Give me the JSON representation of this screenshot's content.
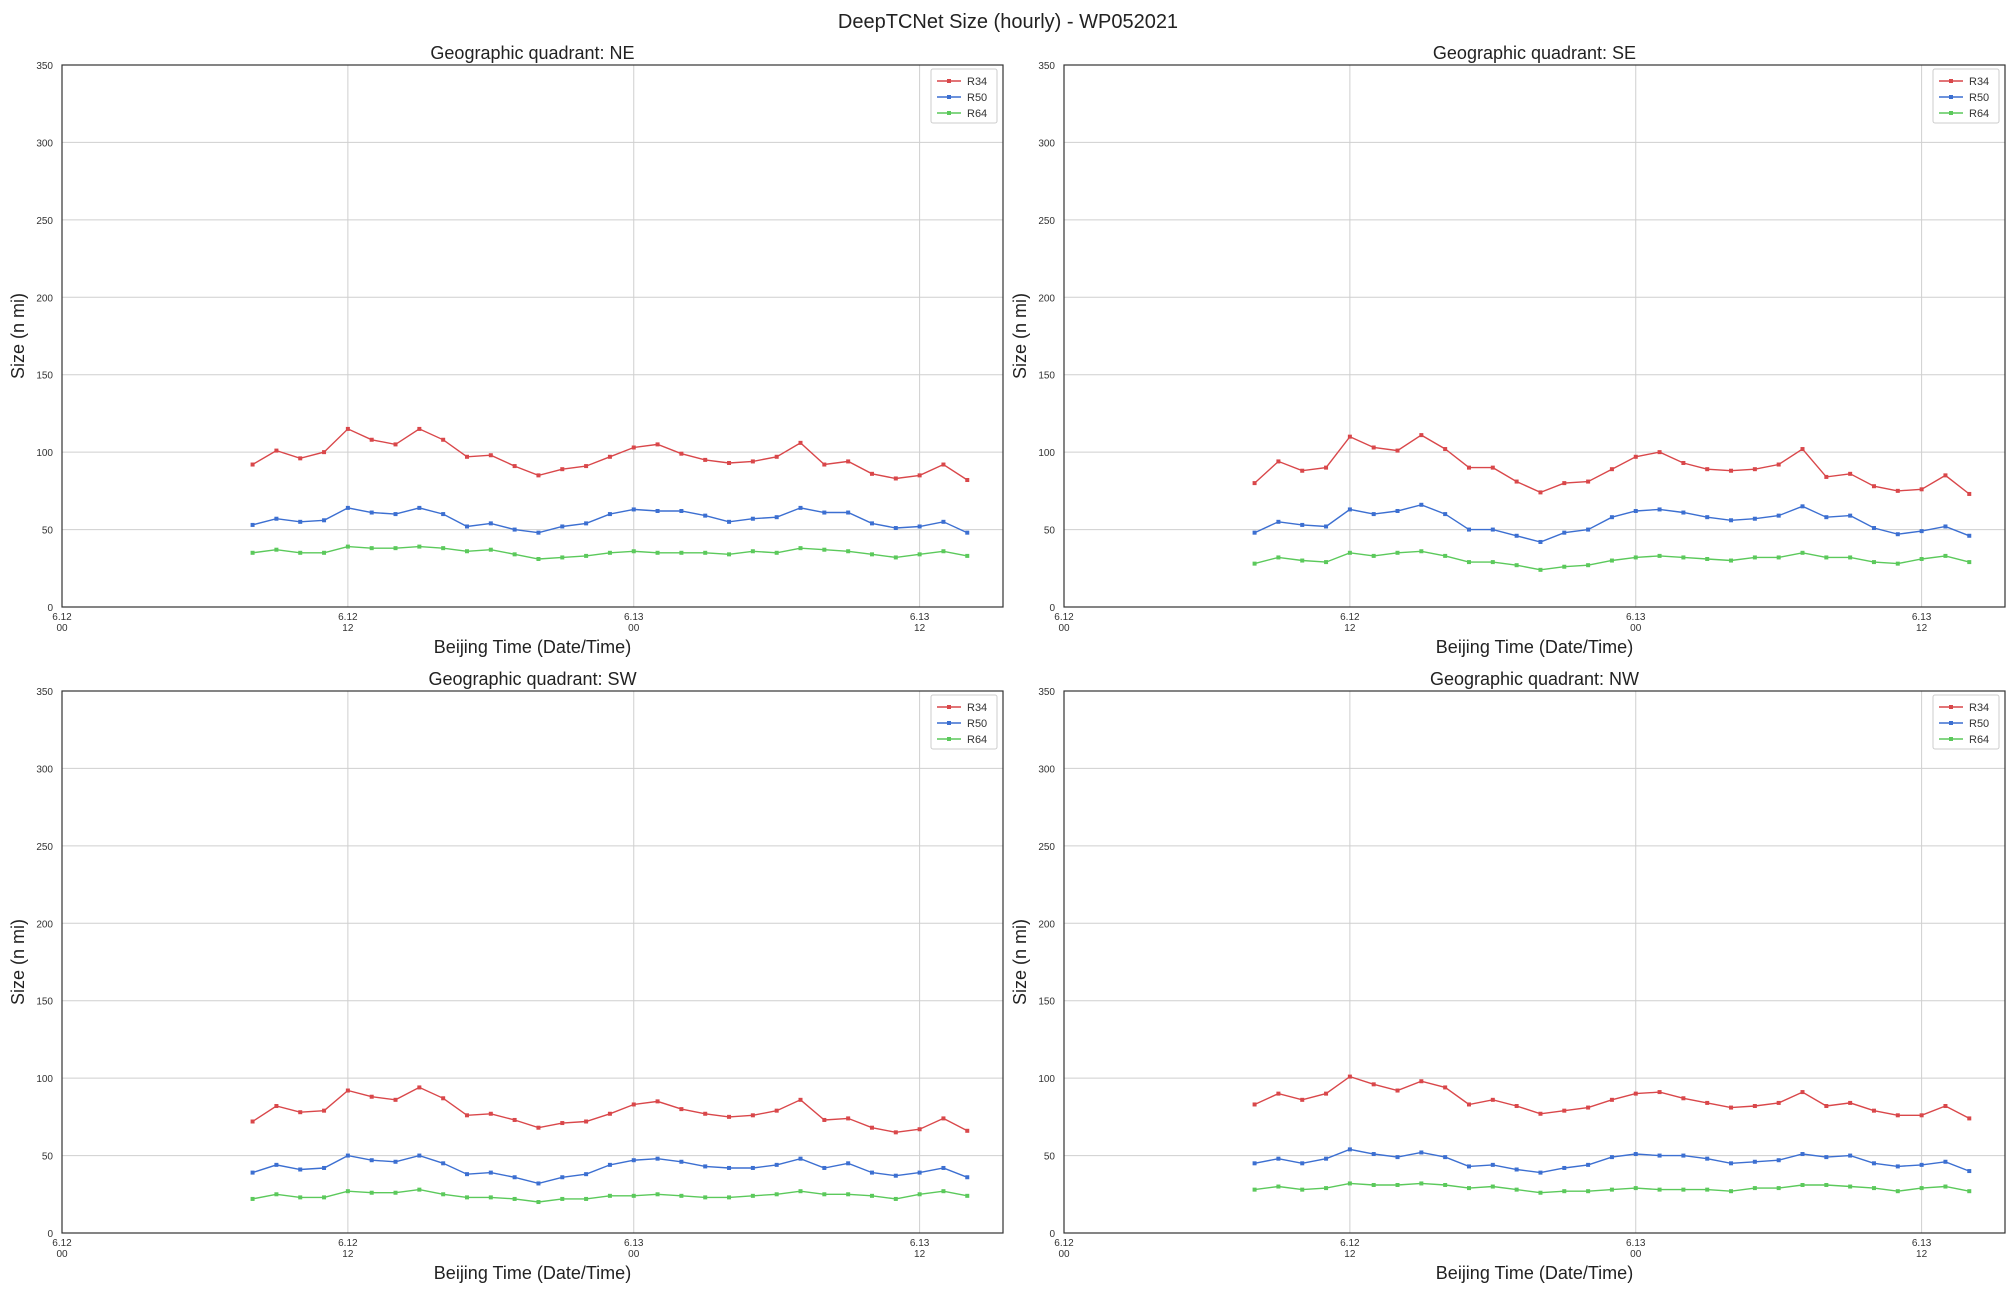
{
  "figure_title": "DeepTCNet Size (hourly) - WP052021",
  "colors": {
    "R34": "#d9474a",
    "R50": "#3c6fd1",
    "R64": "#5bc95b",
    "grid": "#cfcfcf",
    "axes": "#333333"
  },
  "chart_data": [
    {
      "type": "line",
      "title": "Geographic quadrant: NE",
      "xlabel": "Beijing Time (Date/Time)",
      "ylabel": "Size (n mi)",
      "ylim": [
        0,
        350
      ],
      "yticks": [
        0,
        50,
        100,
        150,
        200,
        250,
        300,
        350
      ],
      "xlim_hours": [
        0,
        39.5
      ],
      "xticks": [
        {
          "hour": 0,
          "date": "6.12",
          "time": "00"
        },
        {
          "hour": 12,
          "date": "6.12",
          "time": "12"
        },
        {
          "hour": 24,
          "date": "6.13",
          "time": "00"
        },
        {
          "hour": 36,
          "date": "6.13",
          "time": "12"
        }
      ],
      "x_hours": [
        8,
        9,
        10,
        11,
        12,
        13,
        14,
        15,
        16,
        17,
        18,
        19,
        20,
        21,
        22,
        23,
        24,
        25,
        26,
        27,
        28,
        29,
        30,
        31,
        32,
        33,
        34,
        35,
        36,
        37,
        38
      ],
      "grid": true,
      "legend": "top-right",
      "series": [
        {
          "name": "R34",
          "values": [
            92,
            101,
            96,
            100,
            115,
            108,
            105,
            115,
            108,
            97,
            98,
            91,
            85,
            89,
            91,
            97,
            103,
            105,
            99,
            95,
            93,
            94,
            97,
            106,
            92,
            94,
            86,
            83,
            85,
            92,
            82
          ]
        },
        {
          "name": "R50",
          "values": [
            53,
            57,
            55,
            56,
            64,
            61,
            60,
            64,
            60,
            52,
            54,
            50,
            48,
            52,
            54,
            60,
            63,
            62,
            62,
            59,
            55,
            57,
            58,
            64,
            61,
            61,
            54,
            51,
            52,
            55,
            48
          ]
        },
        {
          "name": "R64",
          "values": [
            35,
            37,
            35,
            35,
            39,
            38,
            38,
            39,
            38,
            36,
            37,
            34,
            31,
            32,
            33,
            35,
            36,
            35,
            35,
            35,
            34,
            36,
            35,
            38,
            37,
            36,
            34,
            32,
            34,
            36,
            33
          ]
        }
      ]
    },
    {
      "type": "line",
      "title": "Geographic quadrant: SE",
      "xlabel": "Beijing Time (Date/Time)",
      "ylabel": "Size (n mi)",
      "ylim": [
        0,
        350
      ],
      "yticks": [
        0,
        50,
        100,
        150,
        200,
        250,
        300,
        350
      ],
      "xlim_hours": [
        0,
        39.5
      ],
      "xticks": [
        {
          "hour": 0,
          "date": "6.12",
          "time": "00"
        },
        {
          "hour": 12,
          "date": "6.12",
          "time": "12"
        },
        {
          "hour": 24,
          "date": "6.13",
          "time": "00"
        },
        {
          "hour": 36,
          "date": "6.13",
          "time": "12"
        }
      ],
      "x_hours": [
        8,
        9,
        10,
        11,
        12,
        13,
        14,
        15,
        16,
        17,
        18,
        19,
        20,
        21,
        22,
        23,
        24,
        25,
        26,
        27,
        28,
        29,
        30,
        31,
        32,
        33,
        34,
        35,
        36,
        37,
        38
      ],
      "grid": true,
      "legend": "top-right",
      "series": [
        {
          "name": "R34",
          "values": [
            80,
            94,
            88,
            90,
            110,
            103,
            101,
            111,
            102,
            90,
            90,
            81,
            74,
            80,
            81,
            89,
            97,
            100,
            93,
            89,
            88,
            89,
            92,
            102,
            84,
            86,
            78,
            75,
            76,
            85,
            73
          ]
        },
        {
          "name": "R50",
          "values": [
            48,
            55,
            53,
            52,
            63,
            60,
            62,
            66,
            60,
            50,
            50,
            46,
            42,
            48,
            50,
            58,
            62,
            63,
            61,
            58,
            56,
            57,
            59,
            65,
            58,
            59,
            51,
            47,
            49,
            52,
            46
          ]
        },
        {
          "name": "R64",
          "values": [
            28,
            32,
            30,
            29,
            35,
            33,
            35,
            36,
            33,
            29,
            29,
            27,
            24,
            26,
            27,
            30,
            32,
            33,
            32,
            31,
            30,
            32,
            32,
            35,
            32,
            32,
            29,
            28,
            31,
            33,
            29
          ]
        }
      ]
    },
    {
      "type": "line",
      "title": "Geographic quadrant: SW",
      "xlabel": "Beijing Time (Date/Time)",
      "ylabel": "Size (n mi)",
      "ylim": [
        0,
        350
      ],
      "yticks": [
        0,
        50,
        100,
        150,
        200,
        250,
        300,
        350
      ],
      "xlim_hours": [
        0,
        39.5
      ],
      "xticks": [
        {
          "hour": 0,
          "date": "6.12",
          "time": "00"
        },
        {
          "hour": 12,
          "date": "6.12",
          "time": "12"
        },
        {
          "hour": 24,
          "date": "6.13",
          "time": "00"
        },
        {
          "hour": 36,
          "date": "6.13",
          "time": "12"
        }
      ],
      "x_hours": [
        8,
        9,
        10,
        11,
        12,
        13,
        14,
        15,
        16,
        17,
        18,
        19,
        20,
        21,
        22,
        23,
        24,
        25,
        26,
        27,
        28,
        29,
        30,
        31,
        32,
        33,
        34,
        35,
        36,
        37,
        38
      ],
      "grid": true,
      "legend": "top-right",
      "series": [
        {
          "name": "R34",
          "values": [
            72,
            82,
            78,
            79,
            92,
            88,
            86,
            94,
            87,
            76,
            77,
            73,
            68,
            71,
            72,
            77,
            83,
            85,
            80,
            77,
            75,
            76,
            79,
            86,
            73,
            74,
            68,
            65,
            67,
            74,
            66
          ]
        },
        {
          "name": "R50",
          "values": [
            39,
            44,
            41,
            42,
            50,
            47,
            46,
            50,
            45,
            38,
            39,
            36,
            32,
            36,
            38,
            44,
            47,
            48,
            46,
            43,
            42,
            42,
            44,
            48,
            42,
            45,
            39,
            37,
            39,
            42,
            36
          ]
        },
        {
          "name": "R64",
          "values": [
            22,
            25,
            23,
            23,
            27,
            26,
            26,
            28,
            25,
            23,
            23,
            22,
            20,
            22,
            22,
            24,
            24,
            25,
            24,
            23,
            23,
            24,
            25,
            27,
            25,
            25,
            24,
            22,
            25,
            27,
            24
          ]
        }
      ]
    },
    {
      "type": "line",
      "title": "Geographic quadrant: NW",
      "xlabel": "Beijing Time (Date/Time)",
      "ylabel": "Size (n mi)",
      "ylim": [
        0,
        350
      ],
      "yticks": [
        0,
        50,
        100,
        150,
        200,
        250,
        300,
        350
      ],
      "xlim_hours": [
        0,
        39.5
      ],
      "xticks": [
        {
          "hour": 0,
          "date": "6.12",
          "time": "00"
        },
        {
          "hour": 12,
          "date": "6.12",
          "time": "12"
        },
        {
          "hour": 24,
          "date": "6.13",
          "time": "00"
        },
        {
          "hour": 36,
          "date": "6.13",
          "time": "12"
        }
      ],
      "x_hours": [
        8,
        9,
        10,
        11,
        12,
        13,
        14,
        15,
        16,
        17,
        18,
        19,
        20,
        21,
        22,
        23,
        24,
        25,
        26,
        27,
        28,
        29,
        30,
        31,
        32,
        33,
        34,
        35,
        36,
        37,
        38
      ],
      "grid": true,
      "legend": "top-right",
      "series": [
        {
          "name": "R34",
          "values": [
            83,
            90,
            86,
            90,
            101,
            96,
            92,
            98,
            94,
            83,
            86,
            82,
            77,
            79,
            81,
            86,
            90,
            91,
            87,
            84,
            81,
            82,
            84,
            91,
            82,
            84,
            79,
            76,
            76,
            82,
            74
          ]
        },
        {
          "name": "R50",
          "values": [
            45,
            48,
            45,
            48,
            54,
            51,
            49,
            52,
            49,
            43,
            44,
            41,
            39,
            42,
            44,
            49,
            51,
            50,
            50,
            48,
            45,
            46,
            47,
            51,
            49,
            50,
            45,
            43,
            44,
            46,
            40
          ]
        },
        {
          "name": "R64",
          "values": [
            28,
            30,
            28,
            29,
            32,
            31,
            31,
            32,
            31,
            29,
            30,
            28,
            26,
            27,
            27,
            28,
            29,
            28,
            28,
            28,
            27,
            29,
            29,
            31,
            31,
            30,
            29,
            27,
            29,
            30,
            27
          ]
        }
      ]
    }
  ]
}
